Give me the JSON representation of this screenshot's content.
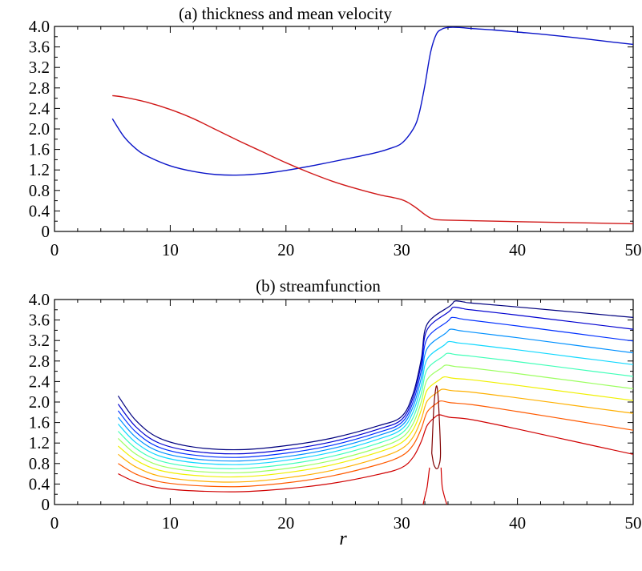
{
  "chart_data": [
    {
      "type": "line",
      "title": "(a) thickness and mean velocity",
      "xlabel": "",
      "ylabel": "",
      "xlim": [
        0,
        50
      ],
      "ylim": [
        0,
        4.0
      ],
      "xticks": [
        "0",
        "10",
        "20",
        "30",
        "40",
        "50"
      ],
      "yticks": [
        "0",
        "0.4",
        "0.8",
        "1.2",
        "1.6",
        "2.0",
        "2.4",
        "2.8",
        "3.2",
        "3.6",
        "4.0"
      ],
      "grid": false,
      "legend": "none",
      "series": [
        {
          "color": "#0a14c8",
          "x": [
            5,
            6,
            7,
            8,
            10,
            12,
            14,
            16,
            18,
            20,
            22,
            24,
            26,
            28,
            29,
            30,
            31,
            31.5,
            32,
            32.5,
            33,
            33.5,
            34,
            35,
            36,
            38,
            40,
            42,
            45,
            48,
            50
          ],
          "y": [
            2.2,
            1.85,
            1.62,
            1.47,
            1.28,
            1.17,
            1.11,
            1.1,
            1.13,
            1.19,
            1.27,
            1.36,
            1.45,
            1.55,
            1.62,
            1.72,
            2.0,
            2.3,
            2.85,
            3.5,
            3.85,
            3.95,
            3.98,
            3.98,
            3.96,
            3.93,
            3.89,
            3.85,
            3.78,
            3.7,
            3.65
          ]
        },
        {
          "color": "#d01818",
          "x": [
            5,
            6,
            8,
            10,
            12,
            14,
            16,
            18,
            20,
            22,
            24,
            26,
            28,
            30,
            31,
            32,
            32.5,
            33,
            34,
            36,
            40,
            45,
            50
          ],
          "y": [
            2.65,
            2.62,
            2.52,
            2.38,
            2.2,
            1.98,
            1.76,
            1.55,
            1.34,
            1.15,
            0.98,
            0.84,
            0.72,
            0.62,
            0.5,
            0.33,
            0.26,
            0.23,
            0.22,
            0.21,
            0.19,
            0.17,
            0.15
          ]
        }
      ]
    },
    {
      "type": "line",
      "title": "(b) streamfunction",
      "xlabel": "r",
      "ylabel": "",
      "xlim": [
        0,
        50
      ],
      "ylim": [
        0,
        4.0
      ],
      "xticks": [
        "0",
        "10",
        "20",
        "30",
        "40",
        "50"
      ],
      "yticks": [
        "0",
        "0.4",
        "0.8",
        "1.2",
        "1.6",
        "2.0",
        "2.4",
        "2.8",
        "3.2",
        "3.6",
        "4.0"
      ],
      "grid": false,
      "legend": "none",
      "contour_levels": [
        {
          "color": "#00007f",
          "y_at_5": 2.12,
          "y_min": 1.07,
          "y_ramp": 1.72,
          "y_peak": 3.97,
          "y_at_50": 3.65
        },
        {
          "color": "#0000d0",
          "y_at_5": 1.96,
          "y_min": 0.99,
          "y_ramp": 1.66,
          "y_peak": 3.85,
          "y_at_50": 3.42
        },
        {
          "color": "#0030ff",
          "y_at_5": 1.83,
          "y_min": 0.92,
          "y_ramp": 1.6,
          "y_peak": 3.65,
          "y_at_50": 3.19
        },
        {
          "color": "#0090ff",
          "y_at_5": 1.7,
          "y_min": 0.85,
          "y_ramp": 1.54,
          "y_peak": 3.42,
          "y_at_50": 2.96
        },
        {
          "color": "#10d8ff",
          "y_at_5": 1.57,
          "y_min": 0.78,
          "y_ramp": 1.47,
          "y_peak": 3.18,
          "y_at_50": 2.73
        },
        {
          "color": "#40ffb8",
          "y_at_5": 1.43,
          "y_min": 0.7,
          "y_ramp": 1.39,
          "y_peak": 2.95,
          "y_at_50": 2.5
        },
        {
          "color": "#9cff60",
          "y_at_5": 1.29,
          "y_min": 0.62,
          "y_ramp": 1.3,
          "y_peak": 2.72,
          "y_at_50": 2.26
        },
        {
          "color": "#f0f000",
          "y_at_5": 1.14,
          "y_min": 0.54,
          "y_ramp": 1.21,
          "y_peak": 2.49,
          "y_at_50": 2.03
        },
        {
          "color": "#ffb000",
          "y_at_5": 0.98,
          "y_min": 0.44,
          "y_ramp": 1.09,
          "y_peak": 2.25,
          "y_at_50": 1.78
        },
        {
          "color": "#ff5a00",
          "y_at_5": 0.8,
          "y_min": 0.35,
          "y_ramp": 0.95,
          "y_peak": 2.02,
          "y_at_50": 1.45
        },
        {
          "color": "#d00000",
          "y_at_5": 0.6,
          "y_min": 0.25,
          "y_ramp": 0.72,
          "y_peak": 1.75,
          "y_at_50": 0.98
        }
      ],
      "inner_loop": {
        "color": "#800000",
        "x": [
          32.6,
          32.75,
          32.9,
          33.05,
          33.2,
          33.35,
          33.2,
          33.05,
          32.9,
          32.75,
          32.6
        ],
        "y": [
          1.0,
          1.8,
          2.2,
          2.3,
          1.9,
          1.0,
          0.75,
          0.7,
          0.72,
          0.8,
          1.0
        ]
      },
      "red_foot": {
        "color": "#d00000",
        "x_left": [
          31.85,
          32.0,
          32.2,
          32.4
        ],
        "y_left": [
          0.0,
          0.15,
          0.35,
          0.72
        ],
        "x_right": [
          33.9,
          33.7,
          33.5,
          33.4
        ],
        "y_right": [
          0.0,
          0.15,
          0.35,
          0.72
        ]
      }
    }
  ]
}
